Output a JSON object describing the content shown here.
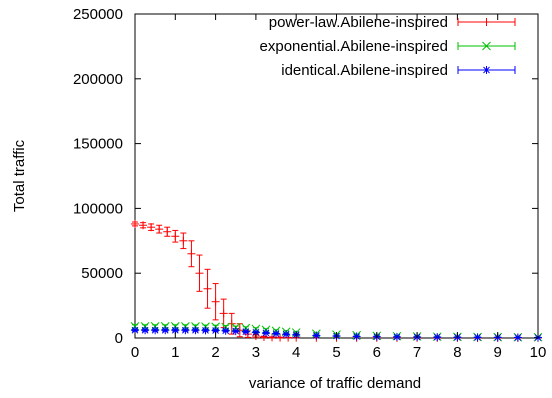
{
  "chart_data": {
    "type": "line",
    "xlabel": "variance of traffic demand",
    "ylabel": "Total traffic",
    "xlim": [
      0,
      10
    ],
    "ylim": [
      0,
      250000
    ],
    "x_ticks": [
      "0",
      "1",
      "2",
      "3",
      "4",
      "5",
      "6",
      "7",
      "8",
      "9",
      "10"
    ],
    "y_ticks": [
      "0",
      "50000",
      "100000",
      "150000",
      "200000",
      "250000"
    ],
    "grid": false,
    "legend_position": "top-right",
    "series": [
      {
        "name": "power-law.Abilene-inspired",
        "color": "#ff0000",
        "marker": "plus",
        "x": [
          0,
          0.2,
          0.4,
          0.6,
          0.8,
          1.0,
          1.2,
          1.4,
          1.6,
          1.8,
          2.0,
          2.2,
          2.4,
          2.6,
          2.8,
          3.0,
          3.2,
          3.4,
          3.6,
          3.8,
          4.0,
          4.5,
          5.0,
          5.5,
          6.0,
          6.5,
          7.0,
          7.5,
          8.0,
          8.5,
          9.0,
          9.5,
          10.0
        ],
        "y": [
          88000,
          87000,
          85500,
          84000,
          82000,
          78500,
          75000,
          65000,
          50000,
          38000,
          28000,
          19000,
          11000,
          6000,
          3000,
          1500,
          800,
          500,
          350,
          300,
          250,
          200,
          180,
          160,
          150,
          140,
          130,
          120,
          110,
          100,
          100,
          100,
          100
        ],
        "err": [
          1500,
          2000,
          2500,
          3000,
          3500,
          4500,
          6000,
          10000,
          14000,
          15000,
          14000,
          11000,
          8000,
          5000,
          2500,
          1200,
          600,
          400,
          300,
          200,
          150,
          100,
          100,
          100,
          100,
          100,
          100,
          100,
          100,
          100,
          100,
          100,
          100
        ]
      },
      {
        "name": "exponential.Abilene-inspired",
        "color": "#00c000",
        "marker": "x",
        "x": [
          0,
          0.25,
          0.5,
          0.75,
          1.0,
          1.25,
          1.5,
          1.75,
          2.0,
          2.25,
          2.5,
          2.75,
          3.0,
          3.25,
          3.5,
          3.75,
          4.0,
          4.5,
          5.0,
          5.5,
          6.0,
          6.5,
          7.0,
          7.5,
          8.0,
          8.5,
          9.0,
          9.5,
          10.0
        ],
        "y": [
          9000,
          9000,
          9000,
          9000,
          9000,
          9000,
          8900,
          8800,
          8700,
          8500,
          8200,
          7700,
          7000,
          6300,
          5500,
          4800,
          4200,
          3300,
          2600,
          2100,
          1700,
          1400,
          1200,
          1000,
          850,
          750,
          650,
          600,
          550
        ],
        "err": [
          1200,
          1200,
          1200,
          1200,
          1200,
          1200,
          1200,
          1200,
          1200,
          1100,
          1000,
          950,
          900,
          850,
          800,
          700,
          650,
          550,
          500,
          400,
          350,
          300,
          250,
          250,
          200,
          200,
          200,
          150,
          150
        ]
      },
      {
        "name": "identical.Abilene-inspired",
        "color": "#0000ff",
        "marker": "star",
        "x": [
          0,
          0.25,
          0.5,
          0.75,
          1.0,
          1.25,
          1.5,
          1.75,
          2.0,
          2.25,
          2.5,
          2.75,
          3.0,
          3.25,
          3.5,
          3.75,
          4.0,
          4.5,
          5.0,
          5.5,
          6.0,
          6.5,
          7.0,
          7.5,
          8.0,
          8.5,
          9.0,
          9.5,
          10.0
        ],
        "y": [
          6000,
          6000,
          6000,
          6000,
          6000,
          6000,
          6000,
          5900,
          5800,
          5600,
          5300,
          4900,
          4400,
          3900,
          3400,
          2900,
          2500,
          1900,
          1500,
          1200,
          1000,
          850,
          750,
          650,
          550,
          500,
          450,
          400,
          350
        ],
        "err": [
          700,
          700,
          700,
          700,
          700,
          700,
          700,
          700,
          700,
          650,
          600,
          600,
          550,
          500,
          450,
          400,
          350,
          300,
          250,
          200,
          180,
          150,
          150,
          120,
          100,
          100,
          100,
          100,
          100
        ]
      }
    ]
  }
}
